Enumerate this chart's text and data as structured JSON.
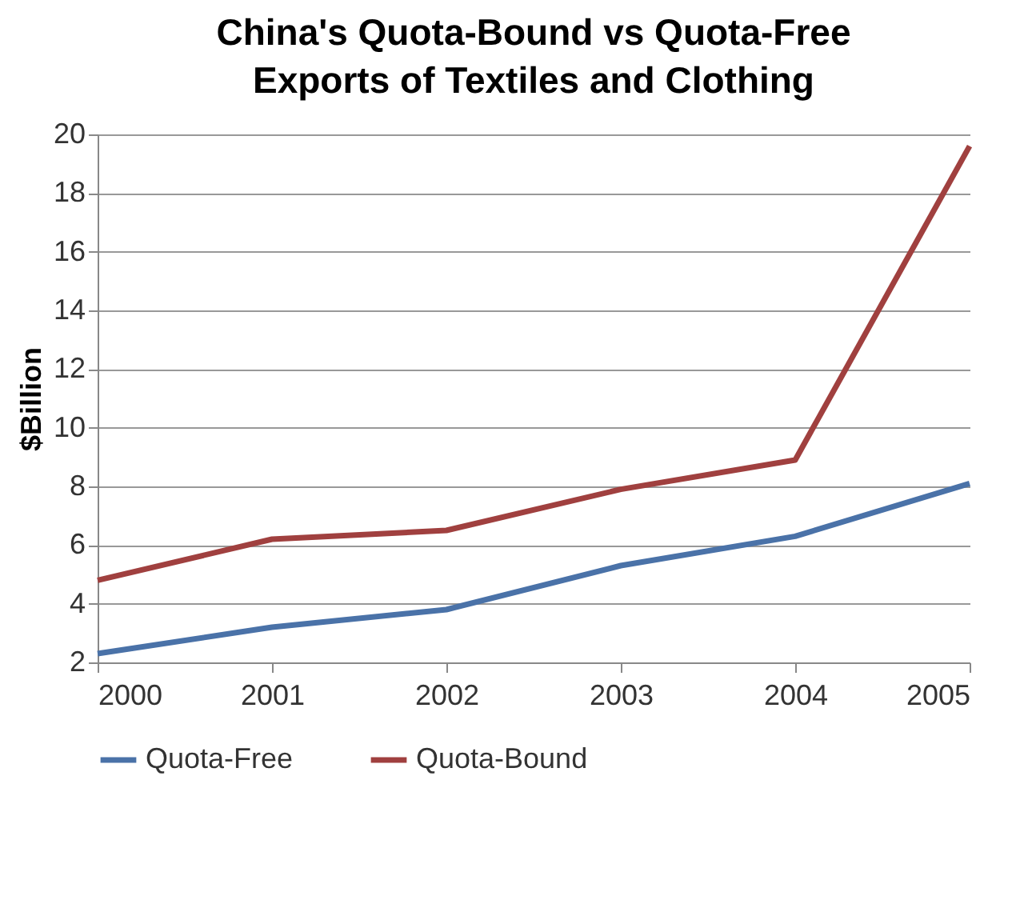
{
  "chart_data": {
    "type": "line",
    "title": "China's Quota-Bound vs Quota-Free Exports of Textiles and Clothing",
    "ylabel": "$Billion",
    "x": [
      2000,
      2001,
      2002,
      2003,
      2004,
      2005
    ],
    "xlim": [
      2000,
      2005
    ],
    "xticks": [
      2000,
      2001,
      2002,
      2003,
      2004,
      2005
    ],
    "ylim": [
      2,
      20
    ],
    "yticks": [
      2,
      4,
      6,
      8,
      10,
      12,
      14,
      16,
      18,
      20
    ],
    "grid": "y",
    "legend": "bottom",
    "marker": "none",
    "line_style": "solid",
    "series": [
      {
        "name": "Quota-Free",
        "color": "#4a72a8",
        "values": [
          2.3,
          3.2,
          3.8,
          5.3,
          6.3,
          8.1
        ]
      },
      {
        "name": "Quota-Bound",
        "color": "#a0403f",
        "values": [
          4.8,
          6.2,
          6.5,
          7.9,
          8.9,
          19.6
        ]
      }
    ]
  }
}
